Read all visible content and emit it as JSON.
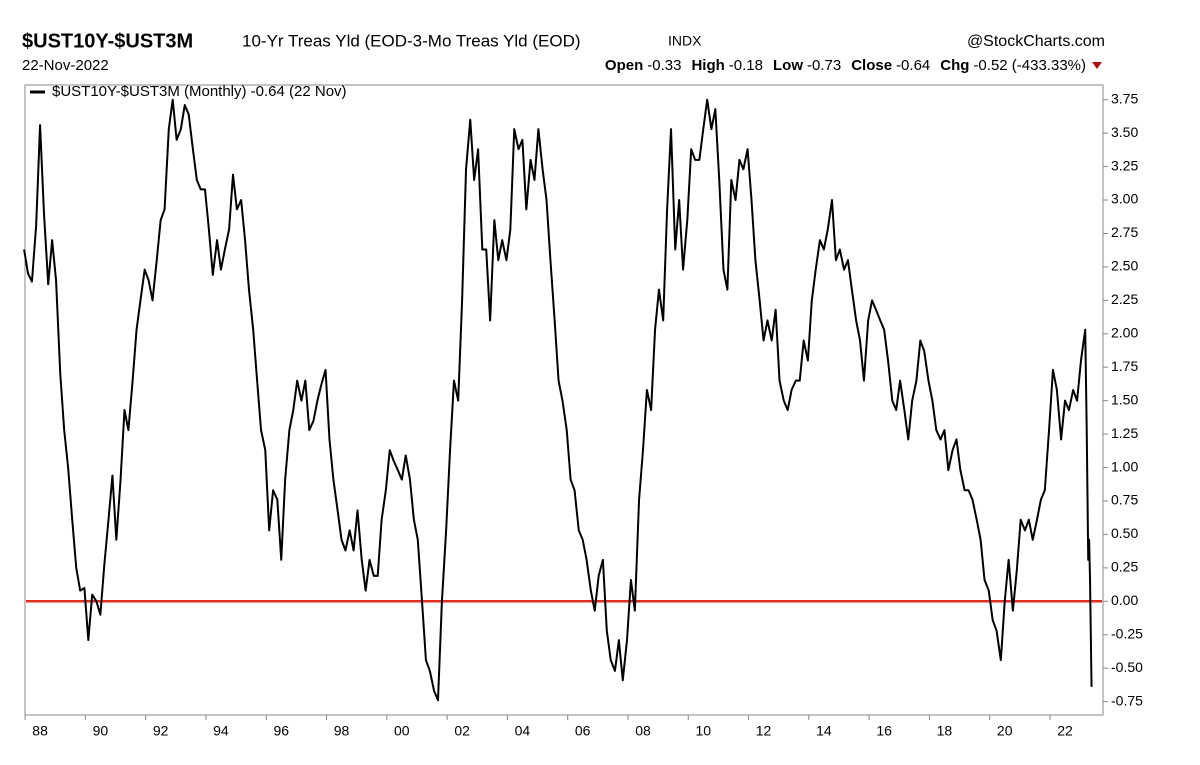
{
  "header": {
    "symbol": "$UST10Y-$UST3M",
    "description": "10-Yr Treas Yld (EOD-3-Mo Treas Yld (EOD)",
    "exchange": "INDX",
    "source": "@StockCharts.com",
    "date": "22-Nov-2022",
    "quote": [
      {
        "label": "Open",
        "value": "-0.33"
      },
      {
        "label": "High",
        "value": "-0.18"
      },
      {
        "label": "Low",
        "value": "-0.73"
      },
      {
        "label": "Close",
        "value": "-0.64"
      },
      {
        "label": "Chg",
        "value": "-0.52 (-433.33%)"
      }
    ]
  },
  "chart_data": {
    "type": "line",
    "xlim": [
      1987.5,
      2023.26
    ],
    "ylim": [
      -0.85,
      3.86
    ],
    "xticks": [
      {
        "value": 1988,
        "label": "88"
      },
      {
        "value": 1990,
        "label": "90"
      },
      {
        "value": 1992,
        "label": "92"
      },
      {
        "value": 1994,
        "label": "94"
      },
      {
        "value": 1996,
        "label": "96"
      },
      {
        "value": 1998,
        "label": "98"
      },
      {
        "value": 2000,
        "label": "00"
      },
      {
        "value": 2002,
        "label": "02"
      },
      {
        "value": 2004,
        "label": "04"
      },
      {
        "value": 2006,
        "label": "06"
      },
      {
        "value": 2008,
        "label": "08"
      },
      {
        "value": 2010,
        "label": "10"
      },
      {
        "value": 2012,
        "label": "12"
      },
      {
        "value": 2014,
        "label": "14"
      },
      {
        "value": 2016,
        "label": "16"
      },
      {
        "value": 2018,
        "label": "18"
      },
      {
        "value": 2020,
        "label": "20"
      },
      {
        "value": 2022,
        "label": "22"
      }
    ],
    "yticks": [
      3.75,
      {
        "value": 3.5,
        "label": "3.50"
      },
      3.25,
      {
        "value": 3,
        "label": "3.00"
      },
      2.75,
      {
        "value": 2.5,
        "label": "2.50"
      },
      2.25,
      {
        "value": 2,
        "label": "2.00"
      },
      1.75,
      {
        "value": 1.5,
        "label": "1.50"
      },
      1.25,
      {
        "value": 1,
        "label": "1.00"
      },
      0.75,
      {
        "value": 0.5,
        "label": "0.50"
      },
      0.25,
      {
        "value": 0,
        "label": "0.00"
      },
      -0.25,
      {
        "value": -0.5,
        "label": "-0.50"
      },
      -0.75
    ],
    "reference_line": {
      "value": 0,
      "color": "#e03020"
    },
    "x": [
      1987.47,
      1987.6,
      1987.73,
      1987.87,
      1988.0,
      1988.13,
      1988.27,
      1988.4,
      1988.53,
      1988.67,
      1988.8,
      1988.93,
      1989.07,
      1989.2,
      1989.33,
      1989.47,
      1989.6,
      1989.73,
      1989.87,
      1990.0,
      1990.13,
      1990.27,
      1990.4,
      1990.53,
      1990.67,
      1990.8,
      1990.93,
      1991.07,
      1991.2,
      1991.33,
      1991.47,
      1991.6,
      1991.73,
      1991.87,
      1992.0,
      1992.13,
      1992.27,
      1992.4,
      1992.53,
      1992.67,
      1992.8,
      1992.93,
      1993.07,
      1993.2,
      1993.33,
      1993.47,
      1993.6,
      1993.73,
      1993.87,
      1994.0,
      1994.13,
      1994.27,
      1994.4,
      1994.53,
      1994.67,
      1994.8,
      1994.93,
      1995.07,
      1995.2,
      1995.33,
      1995.47,
      1995.6,
      1995.73,
      1995.87,
      1996.0,
      1996.13,
      1996.27,
      1996.4,
      1996.53,
      1996.67,
      1996.8,
      1996.93,
      1997.07,
      1997.2,
      1997.33,
      1997.47,
      1997.6,
      1997.73,
      1997.87,
      1998.0,
      1998.13,
      1998.27,
      1998.4,
      1998.53,
      1998.67,
      1998.8,
      1998.93,
      1999.07,
      1999.2,
      1999.33,
      1999.47,
      1999.6,
      1999.73,
      1999.87,
      2000.0,
      2000.13,
      2000.27,
      2000.4,
      2000.53,
      2000.67,
      2000.8,
      2000.93,
      2001.07,
      2001.2,
      2001.33,
      2001.47,
      2001.6,
      2001.73,
      2001.87,
      2002.0,
      2002.13,
      2002.27,
      2002.4,
      2002.53,
      2002.67,
      2002.8,
      2002.93,
      2003.07,
      2003.2,
      2003.33,
      2003.47,
      2003.6,
      2003.73,
      2003.87,
      2004.0,
      2004.13,
      2004.27,
      2004.4,
      2004.53,
      2004.67,
      2004.8,
      2004.93,
      2005.07,
      2005.2,
      2005.33,
      2005.47,
      2005.6,
      2005.73,
      2005.87,
      2006.0,
      2006.13,
      2006.27,
      2006.4,
      2006.53,
      2006.67,
      2006.8,
      2006.93,
      2007.07,
      2007.2,
      2007.33,
      2007.47,
      2007.6,
      2007.73,
      2007.87,
      2008.0,
      2008.13,
      2008.27,
      2008.4,
      2008.53,
      2008.67,
      2008.8,
      2008.93,
      2009.07,
      2009.2,
      2009.33,
      2009.47,
      2009.6,
      2009.73,
      2009.87,
      2010.0,
      2010.13,
      2010.27,
      2010.4,
      2010.53,
      2010.67,
      2010.8,
      2010.93,
      2011.07,
      2011.2,
      2011.33,
      2011.47,
      2011.6,
      2011.73,
      2011.87,
      2012.0,
      2012.13,
      2012.27,
      2012.4,
      2012.53,
      2012.67,
      2012.8,
      2012.93,
      2013.07,
      2013.2,
      2013.33,
      2013.47,
      2013.6,
      2013.73,
      2013.87,
      2014.0,
      2014.13,
      2014.27,
      2014.4,
      2014.53,
      2014.67,
      2014.8,
      2014.93,
      2015.07,
      2015.2,
      2015.33,
      2015.47,
      2015.6,
      2015.73,
      2015.87,
      2016.0,
      2016.13,
      2016.27,
      2016.4,
      2016.53,
      2016.67,
      2016.8,
      2016.93,
      2017.07,
      2017.2,
      2017.33,
      2017.47,
      2017.6,
      2017.73,
      2017.87,
      2018.0,
      2018.13,
      2018.27,
      2018.4,
      2018.53,
      2018.67,
      2018.8,
      2018.93,
      2019.07,
      2019.2,
      2019.33,
      2019.47,
      2019.6,
      2019.73,
      2019.87,
      2020.0,
      2020.13,
      2020.27,
      2020.4,
      2020.53,
      2020.67,
      2020.8,
      2020.93,
      2021.07,
      2021.2,
      2021.33,
      2021.47,
      2021.6,
      2021.73,
      2021.87,
      2022.0,
      2022.13,
      2022.27,
      2022.4,
      2022.53,
      2022.67,
      2022.72,
      2022.77,
      2022.8,
      2022.83,
      2022.88
    ],
    "series": [
      {
        "name": "$UST10Y-$UST3M (Monthly) -0.64 (22 Nov)",
        "color": "#000000",
        "values": [
          2.63,
          2.45,
          2.39,
          2.81,
          3.56,
          2.9,
          2.37,
          2.7,
          2.4,
          1.7,
          1.28,
          1.0,
          0.6,
          0.25,
          0.08,
          0.1,
          -0.29,
          0.05,
          0.0,
          -0.1,
          0.27,
          0.61,
          0.94,
          0.46,
          0.91,
          1.43,
          1.28,
          1.65,
          2.03,
          2.25,
          2.48,
          2.4,
          2.25,
          2.55,
          2.85,
          2.93,
          3.53,
          3.75,
          3.45,
          3.53,
          3.71,
          3.64,
          3.38,
          3.15,
          3.08,
          3.08,
          2.78,
          2.44,
          2.7,
          2.48,
          2.63,
          2.78,
          3.19,
          2.93,
          3.0,
          2.7,
          2.33,
          2.03,
          1.65,
          1.28,
          1.13,
          0.53,
          0.83,
          0.76,
          0.31,
          0.91,
          1.28,
          1.43,
          1.65,
          1.5,
          1.65,
          1.28,
          1.35,
          1.5,
          1.62,
          1.73,
          1.21,
          0.91,
          0.68,
          0.46,
          0.38,
          0.53,
          0.38,
          0.68,
          0.31,
          0.08,
          0.31,
          0.19,
          0.19,
          0.61,
          0.83,
          1.13,
          1.05,
          0.98,
          0.91,
          1.09,
          0.91,
          0.61,
          0.46,
          0.0,
          -0.44,
          -0.52,
          -0.67,
          -0.74,
          0.0,
          0.53,
          1.13,
          1.65,
          1.5,
          2.25,
          3.23,
          3.6,
          3.15,
          3.38,
          2.63,
          2.63,
          2.1,
          2.85,
          2.55,
          2.7,
          2.55,
          2.78,
          3.53,
          3.38,
          3.45,
          2.93,
          3.3,
          3.15,
          3.53,
          3.23,
          3.0,
          2.55,
          2.1,
          1.65,
          1.5,
          1.28,
          0.91,
          0.83,
          0.53,
          0.46,
          0.31,
          0.08,
          -0.07,
          0.19,
          0.31,
          -0.22,
          -0.44,
          -0.52,
          -0.29,
          -0.59,
          -0.29,
          0.16,
          -0.07,
          0.76,
          1.13,
          1.58,
          1.43,
          2.03,
          2.33,
          2.1,
          2.93,
          3.53,
          2.63,
          3.0,
          2.48,
          2.85,
          3.38,
          3.3,
          3.3,
          3.53,
          3.75,
          3.53,
          3.68,
          3.15,
          2.48,
          2.33,
          3.15,
          3.0,
          3.3,
          3.23,
          3.38,
          3.0,
          2.55,
          2.25,
          1.95,
          2.1,
          1.95,
          2.18,
          1.65,
          1.5,
          1.43,
          1.58,
          1.65,
          1.65,
          1.95,
          1.8,
          2.25,
          2.48,
          2.7,
          2.63,
          2.78,
          3.0,
          2.55,
          2.63,
          2.48,
          2.55,
          2.33,
          2.1,
          1.95,
          1.65,
          2.1,
          2.25,
          2.18,
          2.1,
          2.03,
          1.8,
          1.5,
          1.43,
          1.65,
          1.43,
          1.21,
          1.5,
          1.65,
          1.95,
          1.87,
          1.65,
          1.5,
          1.28,
          1.21,
          1.28,
          0.98,
          1.13,
          1.21,
          0.98,
          0.83,
          0.83,
          0.76,
          0.61,
          0.46,
          0.16,
          0.08,
          -0.14,
          -0.22,
          -0.44,
          0.0,
          0.31,
          -0.07,
          0.23,
          0.61,
          0.53,
          0.61,
          0.46,
          0.61,
          0.76,
          0.83,
          1.28,
          1.73,
          1.58,
          1.21,
          1.5,
          1.43,
          1.58,
          1.5,
          1.8,
          2.03,
          1.28,
          0.31,
          0.46,
          0.16,
          -0.64
        ]
      }
    ]
  }
}
